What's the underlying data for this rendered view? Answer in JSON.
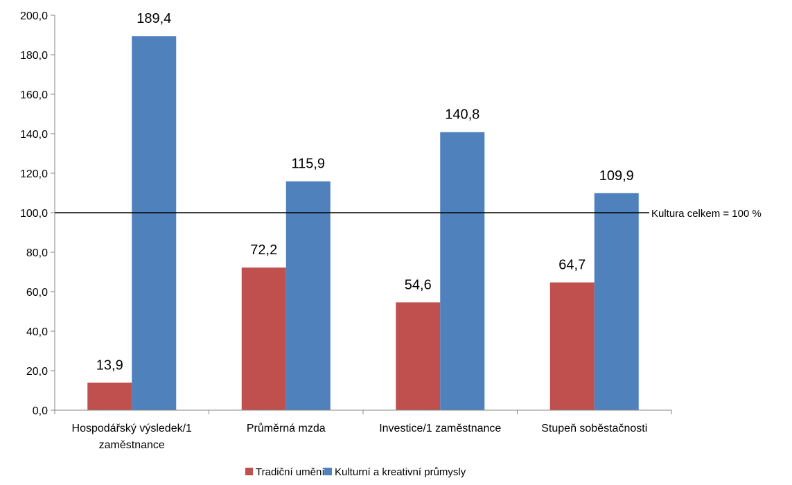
{
  "chart_data": {
    "type": "bar",
    "title": "",
    "xlabel": "",
    "ylabel": "",
    "categories": [
      [
        "Hospodářský výsledek/1",
        "zaměstnance"
      ],
      [
        "Průměrná mzda"
      ],
      [
        "Investice/1 zaměstnance"
      ],
      [
        "Stupeň soběstačnosti"
      ]
    ],
    "series": [
      {
        "name": "Tradiční umění",
        "color": "#C0504D",
        "values": [
          13.9,
          72.2,
          54.6,
          64.7
        ],
        "labels": [
          "13,9",
          "72,2",
          "54,6",
          "64,7"
        ]
      },
      {
        "name": "Kulturní a kreativní průmysly",
        "color": "#4F81BD",
        "values": [
          189.4,
          115.9,
          140.8,
          109.9
        ],
        "labels": [
          "189,4",
          "115,9",
          "140,8",
          "109,9"
        ]
      }
    ],
    "ylim": [
      0,
      200
    ],
    "yticks": [
      0,
      20,
      40,
      60,
      80,
      100,
      120,
      140,
      160,
      180,
      200
    ],
    "ytick_labels": [
      "0,0",
      "20,0",
      "40,0",
      "60,0",
      "80,0",
      "100,0",
      "120,0",
      "140,0",
      "160,0",
      "180,0",
      "200,0"
    ],
    "reference_line": {
      "value": 100,
      "label": "Kultura celkem = 100 %"
    },
    "grid": false,
    "legend_position": "bottom"
  }
}
